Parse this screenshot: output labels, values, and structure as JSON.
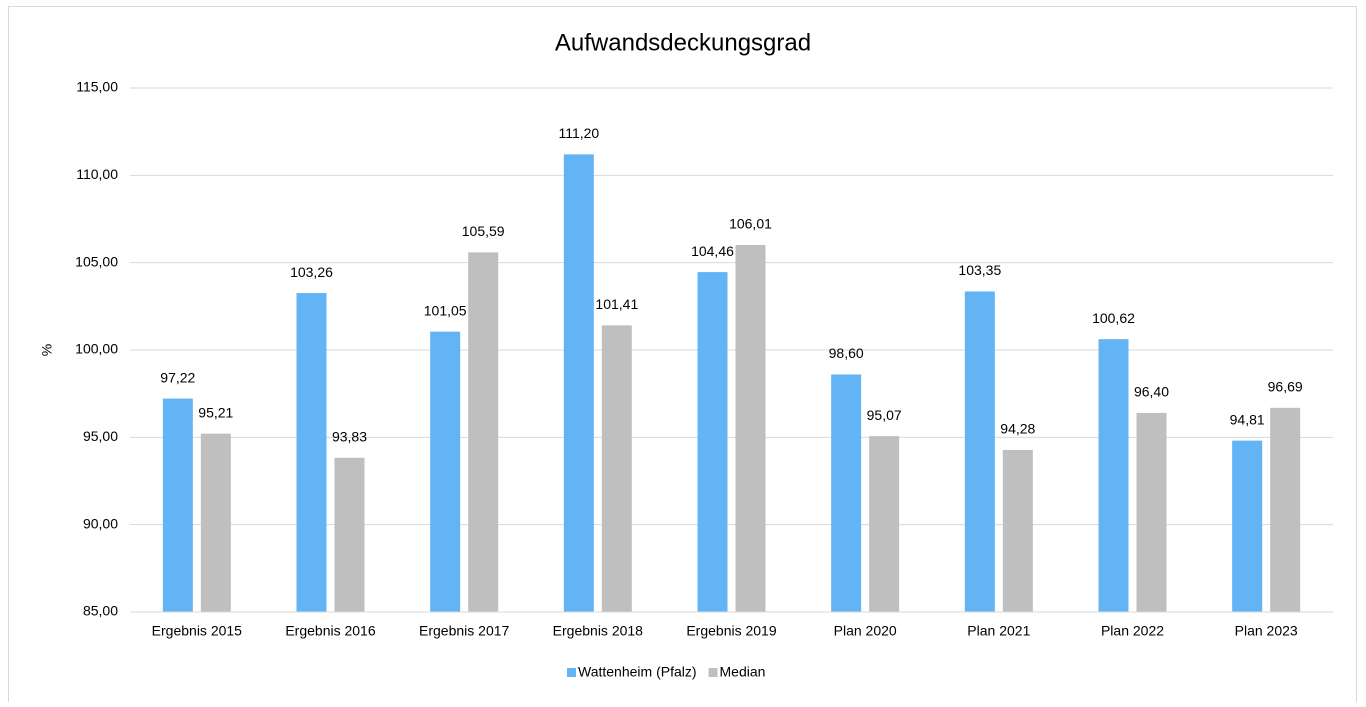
{
  "chart_data": {
    "type": "bar",
    "title": "Aufwandsdeckungsgrad",
    "y_label": "%",
    "categories": [
      "Ergebnis 2015",
      "Ergebnis 2016",
      "Ergebnis 2017",
      "Ergebnis 2018",
      "Ergebnis 2019",
      "Plan 2020",
      "Plan 2021",
      "Plan 2022",
      "Plan 2023"
    ],
    "series": [
      {
        "name": "Wattenheim (Pfalz)",
        "color": "#63b4f5",
        "values": [
          97.22,
          103.26,
          101.05,
          111.2,
          104.46,
          98.6,
          103.35,
          100.62,
          94.81
        ],
        "value_labels": [
          "97,22",
          "103,26",
          "101,05",
          "111,20",
          "104,46",
          "98,60",
          "103,35",
          "100,62",
          "94,81"
        ]
      },
      {
        "name": "Median",
        "color": "#bfbfbf",
        "values": [
          95.21,
          93.83,
          105.59,
          101.41,
          106.01,
          95.07,
          94.28,
          96.4,
          96.69
        ],
        "value_labels": [
          "95,21",
          "93,83",
          "105,59",
          "101,41",
          "106,01",
          "95,07",
          "94,28",
          "96,40",
          "96,69"
        ]
      }
    ],
    "ylim": [
      85,
      115
    ],
    "yticks": [
      {
        "value": 85,
        "label": "85,00"
      },
      {
        "value": 90,
        "label": "90,00"
      },
      {
        "value": 95,
        "label": "95,00"
      },
      {
        "value": 100,
        "label": "100,00"
      },
      {
        "value": 105,
        "label": "105,00"
      },
      {
        "value": 110,
        "label": "110,00"
      },
      {
        "value": 115,
        "label": "115,00"
      }
    ],
    "grid": true,
    "legend": "bottom"
  }
}
